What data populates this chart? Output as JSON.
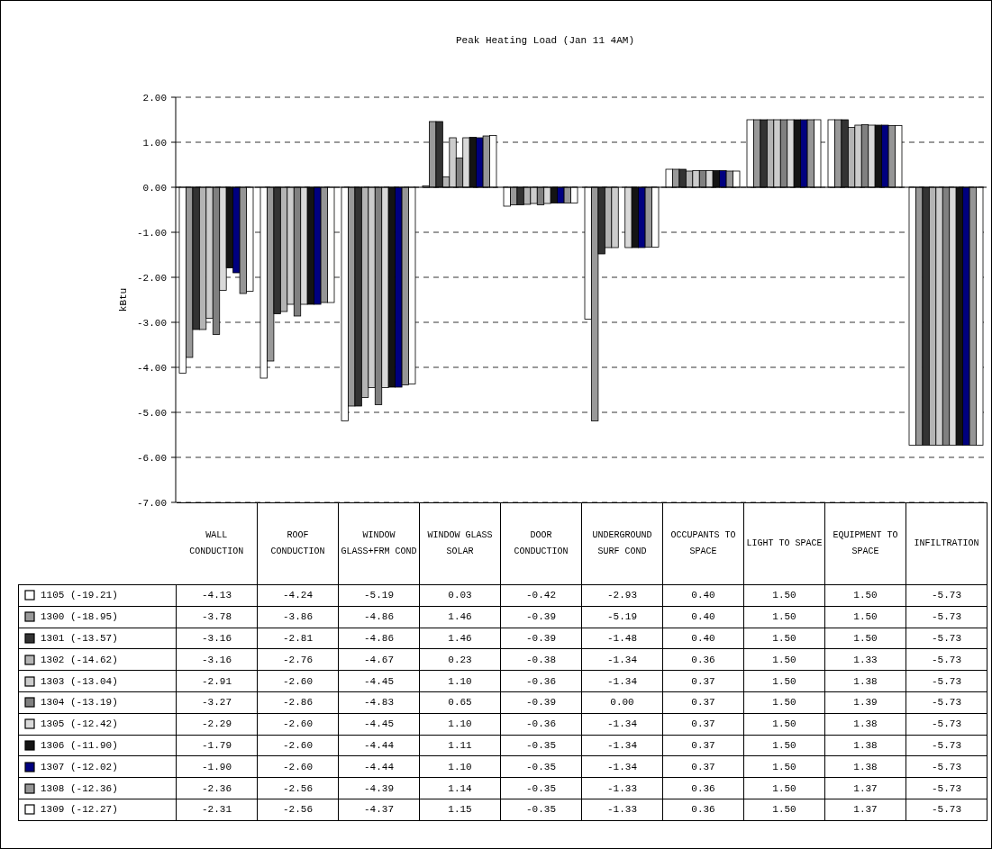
{
  "chart_data": {
    "type": "bar",
    "title": "Peak Heating Load (Jan 11 4AM)",
    "ylabel": "kBtu",
    "categories": [
      "WALL CONDUCTION",
      "ROOF CONDUCTION",
      "WINDOW GLASS+FRM COND",
      "WINDOW GLASS SOLAR",
      "DOOR CONDUCTION",
      "UNDERGROUND SURF COND",
      "OCCUPANTS TO SPACE",
      "LIGHT TO SPACE",
      "EQUIPMENT TO SPACE",
      "INFILTRATION"
    ],
    "ylim": [
      -7,
      2
    ],
    "yticks": [
      {
        "value": -7,
        "label": "-7.00"
      },
      {
        "value": -6,
        "label": "-6.00"
      },
      {
        "value": -5,
        "label": "-5.00"
      },
      {
        "value": -4,
        "label": "-4.00"
      },
      {
        "value": -3,
        "label": "-3.00"
      },
      {
        "value": -2,
        "label": "-2.00"
      },
      {
        "value": -1,
        "label": "-1.00"
      },
      {
        "value": 0,
        "label": "0.00"
      },
      {
        "value": 1,
        "label": "1.00"
      },
      {
        "value": 2,
        "label": "2.00"
      }
    ],
    "grid": "y",
    "legend": "bottom",
    "series": [
      {
        "name": "1105 (-19.21)",
        "color": "#ffffff",
        "values": [
          -4.13,
          -4.24,
          -5.19,
          0.03,
          -0.42,
          -2.93,
          0.4,
          1.5,
          1.5,
          -5.73
        ],
        "value_labels": [
          "-4.13",
          "-4.24",
          "-5.19",
          "0.03",
          "-0.42",
          "-2.93",
          "0.40",
          "1.50",
          "1.50",
          "-5.73"
        ]
      },
      {
        "name": "1300 (-18.95)",
        "color": "#999999",
        "values": [
          -3.78,
          -3.86,
          -4.86,
          1.46,
          -0.39,
          -5.19,
          0.4,
          1.5,
          1.5,
          -5.73
        ],
        "value_labels": [
          "-3.78",
          "-3.86",
          "-4.86",
          "1.46",
          "-0.39",
          "-5.19",
          "0.40",
          "1.50",
          "1.50",
          "-5.73"
        ]
      },
      {
        "name": "1301 (-13.57)",
        "color": "#333333",
        "values": [
          -3.16,
          -2.81,
          -4.86,
          1.46,
          -0.39,
          -1.48,
          0.4,
          1.5,
          1.5,
          -5.73
        ],
        "value_labels": [
          "-3.16",
          "-2.81",
          "-4.86",
          "1.46",
          "-0.39",
          "-1.48",
          "0.40",
          "1.50",
          "1.50",
          "-5.73"
        ]
      },
      {
        "name": "1302 (-14.62)",
        "color": "#b4b4b4",
        "values": [
          -3.16,
          -2.76,
          -4.67,
          0.23,
          -0.38,
          -1.34,
          0.36,
          1.5,
          1.33,
          -5.73
        ],
        "value_labels": [
          "-3.16",
          "-2.76",
          "-4.67",
          "0.23",
          "-0.38",
          "-1.34",
          "0.36",
          "1.50",
          "1.33",
          "-5.73"
        ]
      },
      {
        "name": "1303 (-13.04)",
        "color": "#cccccc",
        "values": [
          -2.91,
          -2.6,
          -4.45,
          1.1,
          -0.36,
          -1.34,
          0.37,
          1.5,
          1.38,
          -5.73
        ],
        "value_labels": [
          "-2.91",
          "-2.60",
          "-4.45",
          "1.10",
          "-0.36",
          "-1.34",
          "0.37",
          "1.50",
          "1.38",
          "-5.73"
        ]
      },
      {
        "name": "1304 (-13.19)",
        "color": "#808080",
        "values": [
          -3.27,
          -2.86,
          -4.83,
          0.65,
          -0.39,
          0.0,
          0.37,
          1.5,
          1.39,
          -5.73
        ],
        "value_labels": [
          "-3.27",
          "-2.86",
          "-4.83",
          "0.65",
          "-0.39",
          "0.00",
          "0.37",
          "1.50",
          "1.39",
          "-5.73"
        ]
      },
      {
        "name": "1305 (-12.42)",
        "color": "#d9d9d9",
        "values": [
          -2.29,
          -2.6,
          -4.45,
          1.1,
          -0.36,
          -1.34,
          0.37,
          1.5,
          1.38,
          -5.73
        ],
        "value_labels": [
          "-2.29",
          "-2.60",
          "-4.45",
          "1.10",
          "-0.36",
          "-1.34",
          "0.37",
          "1.50",
          "1.38",
          "-5.73"
        ]
      },
      {
        "name": "1306 (-11.90)",
        "color": "#141414",
        "values": [
          -1.79,
          -2.6,
          -4.44,
          1.11,
          -0.35,
          -1.34,
          0.37,
          1.5,
          1.38,
          -5.73
        ],
        "value_labels": [
          "-1.79",
          "-2.60",
          "-4.44",
          "1.11",
          "-0.35",
          "-1.34",
          "0.37",
          "1.50",
          "1.38",
          "-5.73"
        ]
      },
      {
        "name": "1307 (-12.02)",
        "color": "#000080",
        "values": [
          -1.9,
          -2.6,
          -4.44,
          1.1,
          -0.35,
          -1.34,
          0.37,
          1.5,
          1.38,
          -5.73
        ],
        "value_labels": [
          "-1.90",
          "-2.60",
          "-4.44",
          "1.10",
          "-0.35",
          "-1.34",
          "0.37",
          "1.50",
          "1.38",
          "-5.73"
        ]
      },
      {
        "name": "1308 (-12.36)",
        "color": "#969696",
        "values": [
          -2.36,
          -2.56,
          -4.39,
          1.14,
          -0.35,
          -1.33,
          0.36,
          1.5,
          1.37,
          -5.73
        ],
        "value_labels": [
          "-2.36",
          "-2.56",
          "-4.39",
          "1.14",
          "-0.35",
          "-1.33",
          "0.36",
          "1.50",
          "1.37",
          "-5.73"
        ]
      },
      {
        "name": "1309 (-12.27)",
        "color": "#fffffe",
        "values": [
          -2.31,
          -2.56,
          -4.37,
          1.15,
          -0.35,
          -1.33,
          0.36,
          1.5,
          1.37,
          -5.73
        ],
        "value_labels": [
          "-2.31",
          "-2.56",
          "-4.37",
          "1.15",
          "-0.35",
          "-1.33",
          "0.36",
          "1.50",
          "1.37",
          "-5.73"
        ]
      }
    ]
  }
}
